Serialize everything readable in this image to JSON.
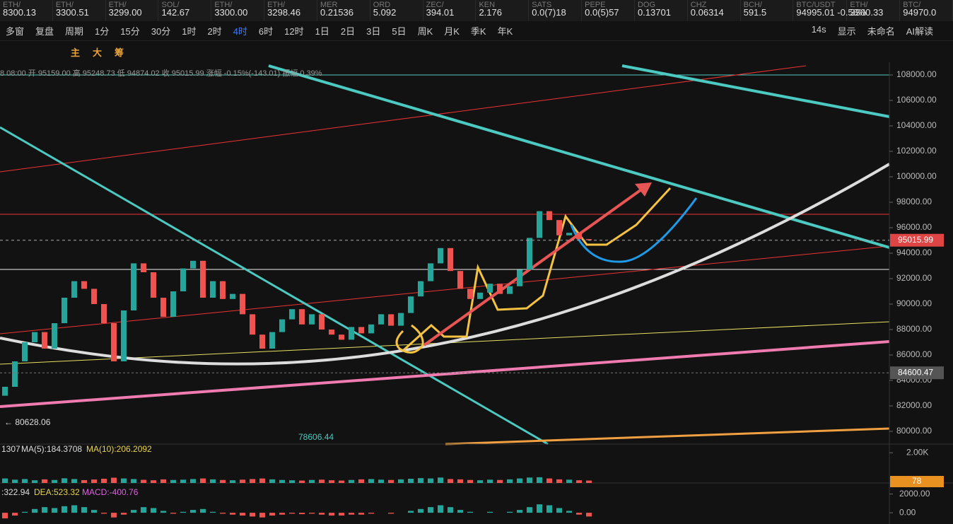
{
  "tickers": [
    {
      "name": "ETH/",
      "price": "8300.13"
    },
    {
      "name": "ETH/",
      "price": "3300.51"
    },
    {
      "name": "ETH/",
      "price": "3299.00"
    },
    {
      "name": "SOL/",
      "price": "142.67"
    },
    {
      "name": "ETH/",
      "price": "3300.00"
    },
    {
      "name": "ETH/",
      "price": "3298.46"
    },
    {
      "name": "MER",
      "price": "0.21536"
    },
    {
      "name": "ORD",
      "price": "5.092"
    },
    {
      "name": "ZEC/",
      "price": "394.01"
    },
    {
      "name": "KEN",
      "price": "2.176"
    },
    {
      "name": "SATS",
      "price": "0.0(7)18"
    },
    {
      "name": "PEPE",
      "price": "0.0(5)57"
    },
    {
      "name": "DOG",
      "price": "0.13701"
    },
    {
      "name": "CHZ",
      "price": "0.06314"
    },
    {
      "name": "BCH/",
      "price": "591.5"
    },
    {
      "name": "BTC/USDT",
      "price": "94995.01 -0.58%"
    },
    {
      "name": "ETH/",
      "price": "3300.33"
    },
    {
      "name": "BTC/",
      "price": "94970.0"
    }
  ],
  "toolbar": {
    "left": [
      "多窗",
      "复盘",
      "周期"
    ],
    "periods": [
      "1分",
      "15分",
      "30分",
      "1时",
      "2时",
      "4时",
      "6时",
      "12时",
      "1日",
      "2日",
      "3日",
      "5日",
      "周K",
      "月K",
      "季K",
      "年K"
    ],
    "active_period": "4时",
    "right": [
      "14s",
      "显示",
      "未命名",
      "AI解读"
    ]
  },
  "indicators": [
    "主",
    "大",
    "筹"
  ],
  "info_line": "8 08:00 开 95159.00 高 95248.73 低 94874.02 收 95015.99 涨幅 -0.15%(-143.01) 振幅 0.39%",
  "chart": {
    "ylim": [
      79000,
      109000
    ],
    "yticks": [
      {
        "value": 108000,
        "label": "108000.00"
      },
      {
        "value": 106000,
        "label": "106000.00"
      },
      {
        "value": 104000,
        "label": "104000.00"
      },
      {
        "value": 102000,
        "label": "102000.00"
      },
      {
        "value": 100000,
        "label": "100000.00"
      },
      {
        "value": 98000,
        "label": "98000.00"
      },
      {
        "value": 96000,
        "label": "96000.00"
      },
      {
        "value": 94000,
        "label": "94000.00"
      },
      {
        "value": 92000,
        "label": "92000.00"
      },
      {
        "value": 90000,
        "label": "90000.00"
      },
      {
        "value": 88000,
        "label": "88000.00"
      },
      {
        "value": 86000,
        "label": "86000.00"
      },
      {
        "value": 84000,
        "label": "84000.00"
      },
      {
        "value": 82000,
        "label": "82000.00"
      },
      {
        "value": 80000,
        "label": "80000.00"
      }
    ],
    "last_price": 95015.99,
    "cross_price": 84600.47,
    "low_label": "← 80628.06",
    "low2_label": "78606.44",
    "open": [
      82800,
      83500,
      85500,
      87000,
      87800,
      86500,
      88500,
      90500,
      91800,
      91200,
      90000,
      88500,
      85500,
      89500,
      93200,
      92500,
      90500,
      89000,
      91000,
      92800,
      93400,
      90500,
      91800,
      90400,
      90800,
      89200,
      87600,
      86500,
      87800,
      88800,
      89600,
      88400,
      89200,
      88000,
      87600,
      87200,
      88200,
      87700,
      88400,
      89200,
      88300,
      89300,
      90600,
      91800,
      93200,
      94400,
      92600,
      91200,
      90400,
      90900,
      91600,
      90800,
      91400,
      92700,
      95200,
      97300,
      96600,
      95400,
      95600,
      95100
    ],
    "close": [
      83500,
      85500,
      87000,
      87800,
      86500,
      88500,
      90500,
      91800,
      91200,
      90000,
      88500,
      85500,
      89500,
      93200,
      92500,
      90500,
      89000,
      91000,
      92800,
      93400,
      90500,
      91800,
      90400,
      90800,
      89200,
      87600,
      86500,
      87800,
      88800,
      89600,
      88400,
      89200,
      88000,
      87600,
      87200,
      88200,
      87700,
      88400,
      89200,
      88300,
      89300,
      90600,
      91800,
      93200,
      94400,
      92600,
      91200,
      90400,
      90900,
      91600,
      90800,
      91400,
      92700,
      95200,
      97300,
      96600,
      95400,
      95600,
      95100,
      95015.99
    ]
  },
  "volume": {
    "labels": [
      "1307",
      "MA(5):184.3708",
      "MA(10):206.2092"
    ],
    "ylim": [
      0,
      2200
    ],
    "yticks": [
      {
        "value": 2000,
        "label": "2.00K"
      }
    ],
    "badge": "78",
    "values": [
      300,
      220,
      260,
      180,
      240,
      200,
      310,
      260,
      190,
      230,
      280,
      350,
      300,
      260,
      210,
      180,
      240,
      200,
      220,
      260,
      300,
      240,
      200,
      180,
      220,
      260,
      300,
      240,
      200,
      180,
      160,
      200,
      220,
      180,
      160,
      200,
      240,
      260,
      220,
      200,
      240,
      280,
      320,
      300,
      360,
      260,
      240,
      200,
      180,
      220,
      200,
      240,
      300,
      360,
      380,
      300,
      240,
      220,
      180,
      160
    ]
  },
  "macd": {
    "labels": [
      ":322.94",
      "DEA:523.32",
      "MACD:-400.76"
    ],
    "ylim": [
      -1200,
      2800
    ],
    "yticks": [
      {
        "value": 2000,
        "label": "2000.00"
      },
      {
        "value": 0,
        "label": "0.00"
      }
    ],
    "values": [
      -600,
      -300,
      100,
      400,
      600,
      500,
      700,
      800,
      600,
      300,
      -100,
      -500,
      -200,
      300,
      600,
      500,
      200,
      -100,
      100,
      300,
      400,
      100,
      -100,
      -200,
      -300,
      -400,
      -500,
      -300,
      -200,
      -100,
      -150,
      -100,
      -200,
      -300,
      -300,
      -200,
      -200,
      -100,
      0,
      -100,
      0,
      200,
      400,
      600,
      800,
      600,
      300,
      100,
      0,
      100,
      0,
      100,
      300,
      600,
      900,
      800,
      500,
      200,
      -200,
      -400
    ]
  }
}
